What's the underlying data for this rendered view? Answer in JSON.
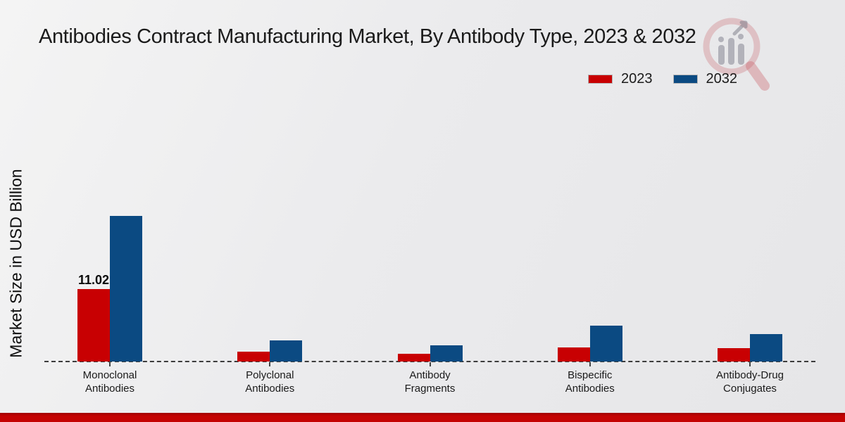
{
  "title": "Antibodies Contract Manufacturing Market, By Antibody Type, 2023 & 2032",
  "legend": [
    {
      "label": "2023",
      "color": "#c80002"
    },
    {
      "label": "2032",
      "color": "#0b4a82"
    }
  ],
  "watermark_name": "market-research-future-logo",
  "colors": {
    "series_2023": "#c80002",
    "series_2032": "#0b4a82",
    "background": "#ebebed",
    "footer_bar": "#c40303",
    "baseline_dash": "#3c3c3c",
    "text": "#1a1a1a"
  },
  "chart_data": {
    "type": "bar",
    "title": "Antibodies Contract Manufacturing Market, By Antibody Type, 2023 & 2032",
    "ylabel": "Market Size in USD Billion",
    "xlabel": "",
    "ylim": [
      0,
      24
    ],
    "grid": false,
    "legend_position": "top-right",
    "baseline_style": "dashed",
    "categories": [
      "Monoclonal Antibodies",
      "Polyclonal Antibodies",
      "Antibody Fragments",
      "Bispecific Antibodies",
      "Antibody-Drug Conjugates"
    ],
    "category_label_lines": [
      [
        "Monoclonal",
        "Antibodies"
      ],
      [
        "Polyclonal",
        "Antibodies"
      ],
      [
        "Antibody",
        "Fragments"
      ],
      [
        "Bispecific",
        "Antibodies"
      ],
      [
        "Antibody-Drug",
        "Conjugates"
      ]
    ],
    "series": [
      {
        "name": "2023",
        "color": "#c80002",
        "values": [
          11.02,
          1.5,
          1.2,
          2.15,
          2.0
        ]
      },
      {
        "name": "2032",
        "color": "#0b4a82",
        "values": [
          22.2,
          3.2,
          2.45,
          5.45,
          4.15
        ]
      }
    ],
    "value_labels": [
      {
        "series": "2023",
        "category_index": 0,
        "text": "11.02"
      }
    ]
  }
}
